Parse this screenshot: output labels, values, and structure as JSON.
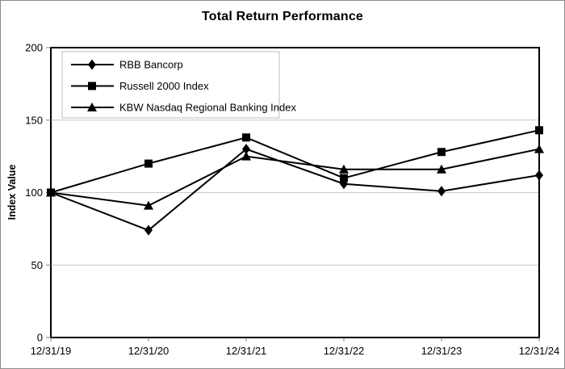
{
  "window": {
    "background_color": "#ffffff",
    "frame_border_color": "#8c8c8c"
  },
  "chart_data": {
    "type": "line",
    "title": "Total Return Performance",
    "ylabel": "Index Value",
    "xlabel": "",
    "categories": [
      "12/31/19",
      "12/31/20",
      "12/31/21",
      "12/31/22",
      "12/31/23",
      "12/31/24"
    ],
    "series": [
      {
        "name": "RBB Bancorp",
        "marker": "diamond",
        "values": [
          100,
          74,
          130,
          106,
          101,
          112
        ]
      },
      {
        "name": "Russell 2000 Index",
        "marker": "square",
        "values": [
          100,
          120,
          138,
          110,
          128,
          143
        ]
      },
      {
        "name": "KBW Nasdaq Regional Banking Index",
        "marker": "triangle",
        "values": [
          100,
          91,
          125,
          116,
          116,
          130
        ]
      }
    ],
    "ylim": [
      0,
      200
    ],
    "yticks": [
      0,
      50,
      100,
      150,
      200
    ],
    "grid": true,
    "gridline_values": [
      50,
      100,
      150
    ],
    "legend_position": "top-left",
    "line_color": "#000000",
    "marker_color": "#000000",
    "gridline_color": "#c9c9c9",
    "axis_color": "#000000",
    "tick_color": "#7f7f7f",
    "legend_border_color": "#bdbdbd"
  }
}
